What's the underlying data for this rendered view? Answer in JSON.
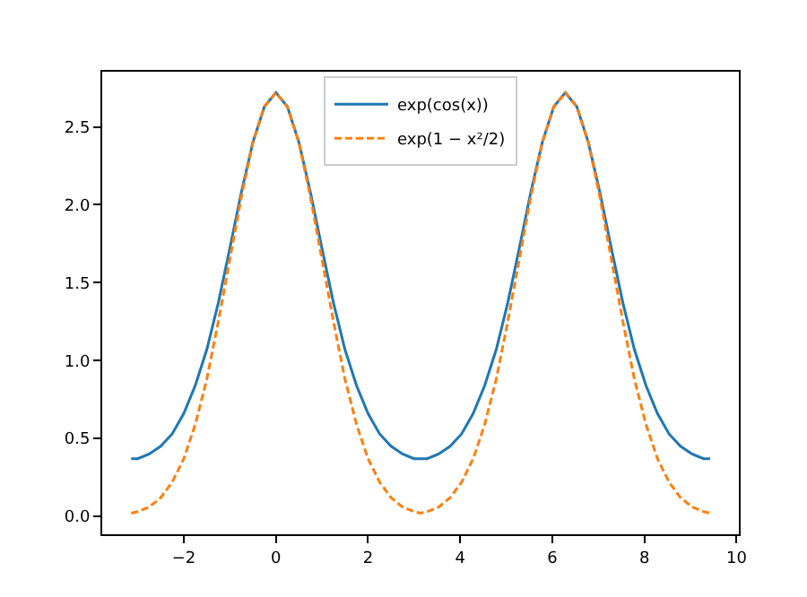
{
  "chart_data": {
    "type": "line",
    "x": [
      -3.1416,
      -3.0,
      -2.75,
      -2.5,
      -2.25,
      -2.0,
      -1.75,
      -1.5,
      -1.25,
      -1.0,
      -0.75,
      -0.5,
      -0.25,
      0,
      0.25,
      0.5,
      0.75,
      1.0,
      1.25,
      1.5,
      1.75,
      2.0,
      2.25,
      2.5,
      2.75,
      3.0,
      3.1416,
      3.283,
      3.533,
      3.783,
      4.033,
      4.283,
      4.533,
      4.783,
      5.033,
      5.283,
      5.533,
      5.783,
      6.033,
      6.283,
      6.533,
      6.783,
      7.033,
      7.283,
      7.533,
      7.783,
      8.033,
      8.283,
      8.533,
      8.783,
      9.033,
      9.283,
      9.425
    ],
    "series": [
      {
        "name": "exp(cos(x))",
        "color": "#1f77b4",
        "line_style": "solid",
        "values": [
          0.37,
          0.37,
          0.4,
          0.45,
          0.53,
          0.66,
          0.84,
          1.07,
          1.37,
          1.72,
          2.08,
          2.4,
          2.63,
          2.72,
          2.63,
          2.4,
          2.08,
          1.72,
          1.37,
          1.07,
          0.84,
          0.66,
          0.53,
          0.45,
          0.4,
          0.37,
          0.37,
          0.37,
          0.4,
          0.45,
          0.53,
          0.66,
          0.84,
          1.07,
          1.37,
          1.72,
          2.08,
          2.4,
          2.63,
          2.72,
          2.63,
          2.4,
          2.08,
          1.72,
          1.37,
          1.07,
          0.84,
          0.66,
          0.53,
          0.45,
          0.4,
          0.37,
          0.37
        ]
      },
      {
        "name": "exp(1 − x²/2)",
        "color": "#ff7f0e",
        "line_style": "dashed",
        "values": [
          0.02,
          0.03,
          0.06,
          0.12,
          0.22,
          0.37,
          0.59,
          0.88,
          1.25,
          1.65,
          2.05,
          2.4,
          2.63,
          2.72,
          2.63,
          2.4,
          2.05,
          1.65,
          1.25,
          0.88,
          0.59,
          0.37,
          0.22,
          0.12,
          0.06,
          0.03,
          0.02,
          0.03,
          0.06,
          0.12,
          0.22,
          0.37,
          0.59,
          0.88,
          1.25,
          1.65,
          2.05,
          2.4,
          2.63,
          2.72,
          2.63,
          2.4,
          2.05,
          1.65,
          1.25,
          0.88,
          0.59,
          0.37,
          0.22,
          0.12,
          0.06,
          0.03,
          0.02
        ]
      }
    ],
    "xlim": [
      -3.77,
      10.05
    ],
    "ylim": [
      -0.115,
      2.854
    ],
    "xticks": [
      {
        "value": -2,
        "label": "−2"
      },
      0,
      2,
      4,
      6,
      8,
      10
    ],
    "yticks": [
      {
        "value": 0,
        "label": "0.0"
      },
      {
        "value": 0.5,
        "label": "0.5"
      },
      {
        "value": 1,
        "label": "1.0"
      },
      {
        "value": 1.5,
        "label": "1.5"
      },
      {
        "value": 2,
        "label": "2.0"
      },
      {
        "value": 2.5,
        "label": "2.5"
      }
    ],
    "legend": "top",
    "marker": "none"
  }
}
